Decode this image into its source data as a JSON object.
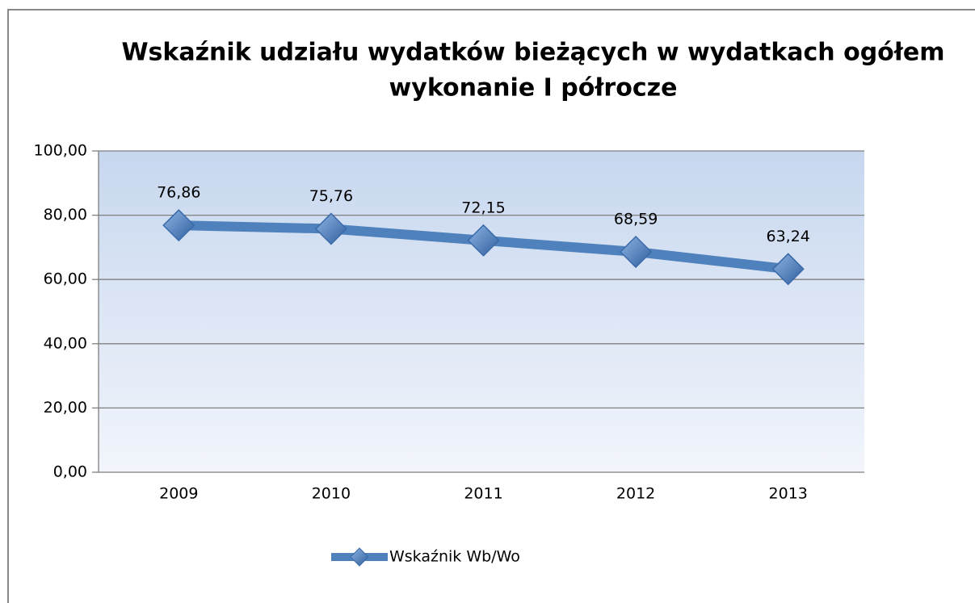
{
  "chart_data": {
    "type": "line",
    "title": "Wskaźnik udziału wydatków bieżących w wydatkach ogółem",
    "subtitle": "wykonanie I półrocze",
    "categories": [
      "2009",
      "2010",
      "2011",
      "2012",
      "2013"
    ],
    "series": [
      {
        "name": "Wskaźnik Wb/Wo",
        "color": "#4f81bd",
        "values": [
          76.86,
          75.76,
          72.15,
          68.59,
          63.24
        ],
        "value_labels": [
          "76,86",
          "75,76",
          "72,15",
          "68,59",
          "63,24"
        ]
      }
    ],
    "ylim": [
      0,
      100
    ],
    "yticks": [
      {
        "value": 0,
        "label": "0,00"
      },
      {
        "value": 20,
        "label": "20,00"
      },
      {
        "value": 40,
        "label": "40,00"
      },
      {
        "value": 60,
        "label": "60,00"
      },
      {
        "value": 80,
        "label": "80,00"
      },
      {
        "value": 100,
        "label": "100,00"
      }
    ],
    "grid": true,
    "legend": "bottom"
  }
}
